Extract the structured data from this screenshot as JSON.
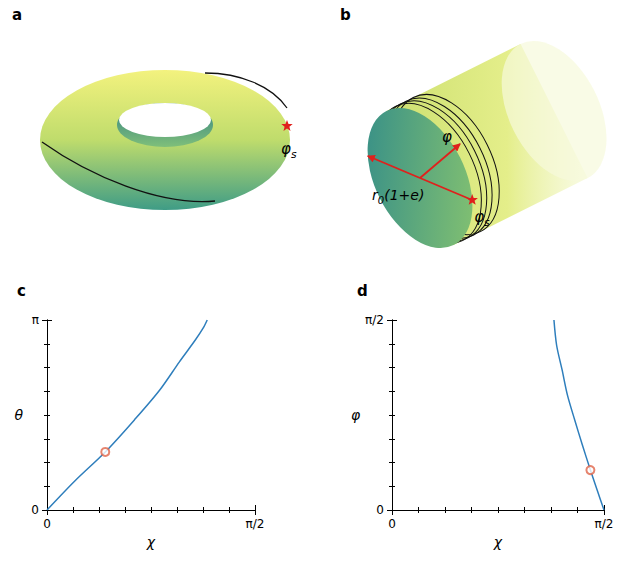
{
  "diagrams": [
    {
      "panel_label": "a",
      "shape": "torus",
      "annotations": [
        [
          {
            "t": "φ"
          },
          {
            "t": "s",
            "sub": true
          }
        ]
      ]
    },
    {
      "panel_label": "b",
      "shape": "cylinder",
      "annotations": [
        [
          {
            "t": "φ"
          }
        ],
        [
          {
            "t": "r"
          },
          {
            "t": "0",
            "sub": true
          },
          {
            "t": "(1+e)"
          }
        ],
        [
          {
            "t": "φ"
          },
          {
            "t": "s",
            "sub": true
          }
        ]
      ]
    }
  ],
  "chart_data": [
    {
      "panel_label": "c",
      "type": "line",
      "x_label": "χ",
      "y_label": "θ",
      "xlim": [
        0,
        1.5708
      ],
      "ylim": [
        0,
        3.1416
      ],
      "xticks": [
        0,
        {
          "value": 1.5708,
          "label": "π/2"
        }
      ],
      "yticks": [
        0,
        {
          "value": 3.1416,
          "label": "π"
        }
      ],
      "series": [
        {
          "type": "line",
          "color": "#2e7ebc",
          "x": [
            0,
            0.21,
            0.44,
            0.66,
            0.85,
            1.0,
            1.12,
            1.18,
            1.21
          ],
          "values": [
            0,
            0.48,
            0.96,
            1.49,
            1.98,
            2.45,
            2.81,
            3.01,
            3.1416
          ]
        },
        {
          "type": "scatter",
          "marker": "circle_open",
          "color": "#e0654a",
          "x": [
            0.44
          ],
          "values": [
            0.96
          ]
        }
      ]
    },
    {
      "panel_label": "d",
      "type": "line",
      "x_label": "χ",
      "y_label": "φ",
      "xlim": [
        0,
        1.5708
      ],
      "ylim": [
        0,
        1.5708
      ],
      "xticks": [
        0,
        {
          "value": 1.5708,
          "label": "π/2"
        }
      ],
      "yticks": [
        0,
        {
          "value": 1.5708,
          "label": "π/2"
        }
      ],
      "series": [
        {
          "type": "line",
          "color": "#2e7ebc",
          "x": [
            1.5708,
            1.52,
            1.47,
            1.41,
            1.355,
            1.3,
            1.26,
            1.22,
            1.2
          ],
          "values": [
            0,
            0.165,
            0.33,
            0.54,
            0.74,
            0.95,
            1.16,
            1.36,
            1.5708
          ]
        },
        {
          "type": "scatter",
          "marker": "circle_open",
          "color": "#e0654a",
          "x": [
            1.47
          ],
          "values": [
            0.33
          ]
        }
      ]
    }
  ]
}
